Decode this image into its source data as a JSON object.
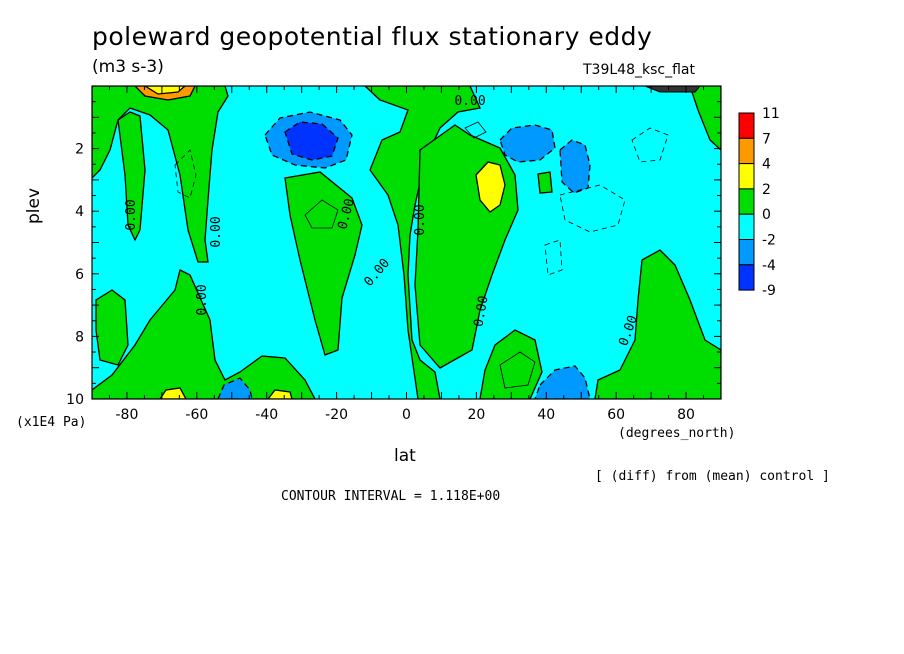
{
  "chart_data": {
    "type": "heatmap",
    "title": "poleward geopotential flux stationary eddy",
    "units": "(m3 s-3)",
    "run_label": "T39L48_ksc_flat",
    "xlabel": "lat",
    "xunit": "(degrees_north)",
    "ylabel": "plev",
    "yunit": "(x1E4 Pa)",
    "annotation": "[ (diff) from (mean) control ]",
    "contour_interval_text": "CONTOUR INTERVAL = 1.118E+00",
    "xlim": [
      -90,
      90
    ],
    "ylim": [
      10,
      0
    ],
    "xticks": [
      -80,
      -60,
      -40,
      -20,
      0,
      20,
      40,
      60,
      80
    ],
    "yticks": [
      2,
      4,
      6,
      8,
      10
    ],
    "contour_labels": [
      "0.00",
      "0.00",
      "0.00",
      "0.00",
      "0.00",
      "0.00",
      "0.00",
      "0.00",
      "0.00"
    ],
    "colorbar": {
      "levels": [
        "11",
        "7",
        "4",
        "2",
        "0",
        "-2",
        "-4",
        "-9"
      ],
      "colors": [
        "#ff0000",
        "#ff9900",
        "#ffff00",
        "#00dd00",
        "#00ffff",
        "#0099ff",
        "#0033ff"
      ]
    },
    "regions": [
      {
        "name": "pos-nh-high-lat",
        "level": 0,
        "color": "#00dd00"
      },
      {
        "name": "neg-sh-upper",
        "level": -4,
        "color": "#0066ff"
      },
      {
        "name": "pos-tropics-20N",
        "level": 2,
        "color": "#ffff00"
      },
      {
        "name": "neg-40N-upper",
        "level": -2,
        "color": "#0099ff"
      }
    ]
  }
}
